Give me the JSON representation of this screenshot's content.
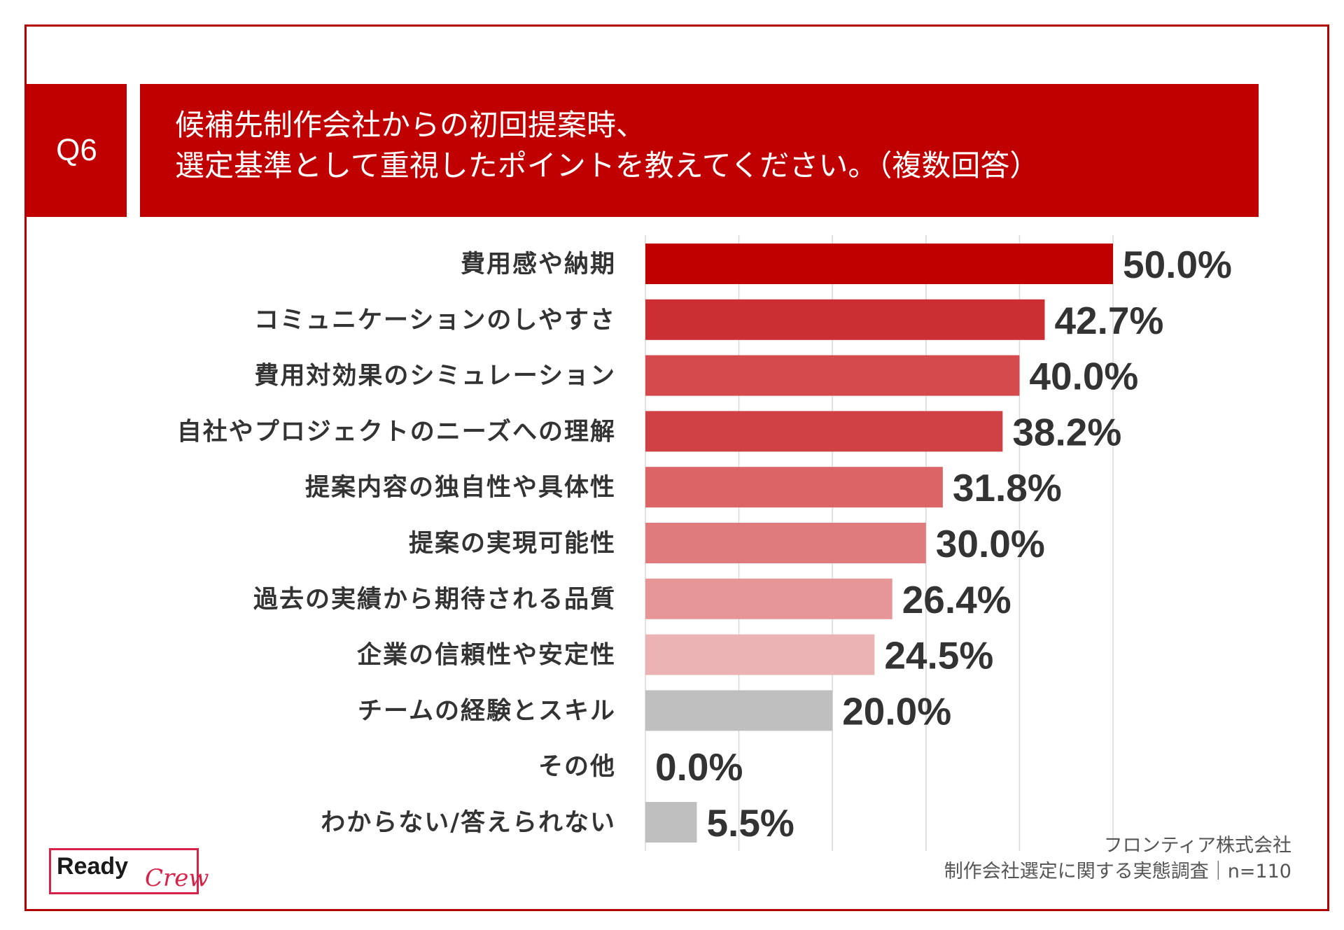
{
  "header": {
    "question_no": "Q6",
    "title_line1": "候補先制作会社からの初回提案時、",
    "title_line2": "選定基準として重視したポイントを教えてください。（複数回答）"
  },
  "chart_data": {
    "type": "bar",
    "orientation": "horizontal",
    "title": "候補先制作会社からの初回提案時、選定基準として重視したポイントを教えてください。（複数回答）",
    "categories": [
      "費用感や納期",
      "コミュニケーションのしやすさ",
      "費用対効果のシミュレーション",
      "自社やプロジェクトのニーズへの理解",
      "提案内容の独自性や具体性",
      "提案の実現可能性",
      "過去の実績から期待される品質",
      "企業の信頼性や安定性",
      "チームの経験とスキル",
      "その他",
      "わからない/答えられない"
    ],
    "values": [
      50.0,
      42.7,
      40.0,
      38.2,
      31.8,
      30.0,
      26.4,
      24.5,
      20.0,
      0.0,
      5.5
    ],
    "value_labels": [
      "50.0%",
      "42.7%",
      "40.0%",
      "38.2%",
      "31.8%",
      "30.0%",
      "26.4%",
      "24.5%",
      "20.0%",
      "0.0%",
      "5.5%"
    ],
    "bar_colors": [
      "#c00000",
      "#cc2f33",
      "#d44a4d",
      "#d04146",
      "#dc6366",
      "#e07b7d",
      "#e69697",
      "#ebb3b3",
      "#bfbfbf",
      "#bfbfbf",
      "#bfbfbf"
    ],
    "xlim": [
      0,
      50
    ],
    "grid": true,
    "unit": "%"
  },
  "footer": {
    "company": "フロンティア株式会社",
    "survey": "制作会社選定に関する実態調査｜n=110"
  },
  "logo": {
    "word1": "Ready",
    "word2": "Crew"
  },
  "colors": {
    "accent": "#c00000",
    "frame": "#b30000",
    "logo_accent": "#d6234a"
  }
}
